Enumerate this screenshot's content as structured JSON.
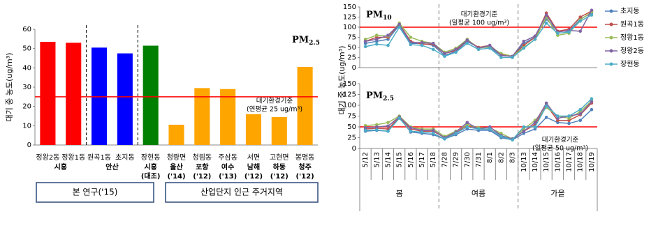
{
  "chart_data": [
    {
      "type": "bar",
      "title": {
        "text": "PM",
        "subscript": "2.5"
      },
      "y_label": "대기 중 농도(ug/m³)",
      "categories": [
        "정왕2동",
        "정왕1동",
        "원곡1동",
        "초지동",
        "장현동",
        "청량면",
        "청림동",
        "주삼동",
        "서면",
        "고현면",
        "봉명동"
      ],
      "values": [
        53.5,
        53,
        50.5,
        47.5,
        51.5,
        10.5,
        29.5,
        29,
        16,
        14.5,
        40.5
      ],
      "colors": [
        "#ff0000",
        "#ff0000",
        "#0000ff",
        "#0000ff",
        "#008000",
        "#ffa500",
        "#ffa500",
        "#ffa500",
        "#ffa500",
        "#ffa500",
        "#ffa500"
      ],
      "groups": [
        {
          "label": [
            "시흥"
          ],
          "members": [
            "정왕2동",
            "정왕1동"
          ]
        },
        {
          "label": [
            "안산"
          ],
          "members": [
            "원곡1동",
            "초지동"
          ]
        },
        {
          "label": [
            "시흥",
            "(대조)"
          ],
          "members": [
            "장현동"
          ]
        },
        {
          "label": [
            "울산",
            "('14)"
          ],
          "members": [
            "청량면"
          ]
        },
        {
          "label": [
            "포항",
            "('12)"
          ],
          "members": [
            "청림동"
          ]
        },
        {
          "label": [
            "여수",
            "('13)"
          ],
          "members": [
            "주삼동"
          ]
        },
        {
          "label": [
            "남해",
            "('12)"
          ],
          "members": [
            "서면"
          ]
        },
        {
          "label": [
            "하동",
            "('12)"
          ],
          "members": [
            "고현면"
          ]
        },
        {
          "label": [
            "청주",
            "('12)"
          ],
          "members": [
            "봉명동"
          ]
        }
      ],
      "sections": [
        "본 연구('15)",
        "산업단지 인근 주거지역"
      ],
      "ylim": [
        0,
        60
      ],
      "yticks": [
        0,
        10,
        20,
        30,
        40,
        50,
        60
      ],
      "reference_line": {
        "value": 25,
        "color": "#ff0000",
        "label": [
          "대기환경기준",
          "(연평균 25 ug/m³)"
        ]
      }
    },
    {
      "type": "line",
      "title": {
        "text": "PM",
        "subscript": "10"
      },
      "y_label": "대기 중 농도(ug/m³)",
      "series": [
        {
          "name": "초지동",
          "color": "#4f81bd",
          "values": [
            60,
            65,
            70,
            105,
            60,
            60,
            55,
            30,
            40,
            65,
            50,
            50,
            30,
            28,
            60,
            75,
            120,
            90,
            90,
            120,
            135
          ]
        },
        {
          "name": "원곡1동",
          "color": "#c0504d",
          "values": [
            65,
            75,
            75,
            108,
            65,
            58,
            58,
            35,
            42,
            68,
            50,
            55,
            32,
            28,
            55,
            75,
            135,
            90,
            95,
            125,
            140
          ]
        },
        {
          "name": "정왕1동",
          "color": "#9bbb59",
          "values": [
            70,
            80,
            78,
            110,
            75,
            65,
            60,
            38,
            48,
            70,
            48,
            52,
            35,
            28,
            50,
            70,
            125,
            80,
            85,
            118,
            138
          ]
        },
        {
          "name": "정왕2동",
          "color": "#8064a2",
          "values": [
            65,
            70,
            80,
            107,
            62,
            62,
            60,
            35,
            45,
            68,
            48,
            55,
            30,
            28,
            65,
            78,
            130,
            88,
            92,
            90,
            142
          ]
        },
        {
          "name": "장현동",
          "color": "#4bacc6",
          "values": [
            52,
            58,
            55,
            100,
            57,
            55,
            45,
            28,
            38,
            60,
            45,
            48,
            25,
            25,
            48,
            70,
            110,
            85,
            88,
            115,
            130
          ]
        }
      ],
      "ylim": [
        0,
        150
      ],
      "yticks": [
        0,
        25,
        50,
        75,
        100,
        125,
        150
      ],
      "reference_line": {
        "value": 100,
        "color": "#ff0000",
        "label": [
          "대기환경기준",
          "(일평균 100 ug/m³)"
        ]
      }
    },
    {
      "type": "line",
      "title": {
        "text": "PM",
        "subscript": "2.5"
      },
      "categories": [
        "5/12",
        "5/13",
        "5/14",
        "5/15",
        "5/16",
        "5/17",
        "5/18",
        "7/28",
        "7/29",
        "7/30",
        "7/31",
        "8/1",
        "8/2",
        "8/3",
        "10/13",
        "10/14",
        "10/15",
        "10/16",
        "10/17",
        "10/18",
        "10/19"
      ],
      "seasons": [
        "봄",
        "여름",
        "가을"
      ],
      "series": [
        {
          "color": "#4f81bd",
          "values": [
            40,
            42,
            40,
            72,
            38,
            35,
            32,
            22,
            32,
            45,
            42,
            42,
            25,
            20,
            35,
            45,
            72,
            60,
            58,
            65,
            90
          ]
        },
        {
          "color": "#c0504d",
          "values": [
            45,
            47,
            45,
            73,
            45,
            40,
            40,
            25,
            35,
            55,
            45,
            45,
            28,
            22,
            40,
            55,
            100,
            65,
            65,
            78,
            105
          ]
        },
        {
          "color": "#9bbb59",
          "values": [
            53,
            55,
            60,
            75,
            50,
            45,
            45,
            28,
            40,
            55,
            48,
            48,
            35,
            22,
            45,
            65,
            95,
            75,
            70,
            85,
            110
          ]
        },
        {
          "color": "#8064a2",
          "values": [
            48,
            50,
            52,
            73,
            48,
            42,
            42,
            25,
            38,
            60,
            45,
            50,
            30,
            22,
            40,
            60,
            105,
            70,
            75,
            80,
            108
          ]
        },
        {
          "color": "#4bacc6",
          "values": [
            42,
            43,
            40,
            70,
            40,
            38,
            35,
            22,
            35,
            50,
            45,
            45,
            28,
            20,
            50,
            50,
            98,
            75,
            75,
            90,
            115
          ]
        }
      ],
      "ylim": [
        0,
        150
      ],
      "yticks": [
        0,
        25,
        50,
        75,
        100,
        125,
        150
      ],
      "reference_line": {
        "value": 50,
        "color": "#ff0000",
        "label": [
          "대기환경기준",
          "(일평균 50 ug/m³)"
        ]
      }
    }
  ]
}
